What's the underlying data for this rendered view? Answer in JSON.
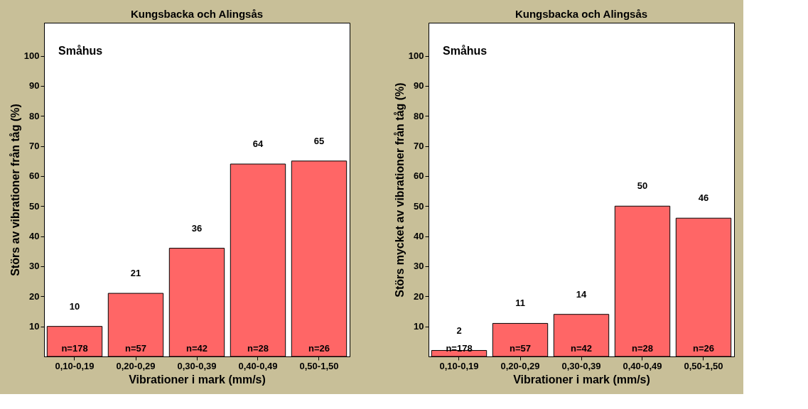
{
  "chart_data": [
    {
      "type": "bar",
      "title": "Kungsbacka och Alingsås",
      "xlabel": "Vibrationer i mark (mm/s)",
      "ylabel": "Störs av vibrationer från tåg (%)",
      "categories": [
        "0,10-0,19",
        "0,20-0,29",
        "0,30-0,39",
        "0,40-0,49",
        "0,50-1,50"
      ],
      "values": [
        10,
        21,
        36,
        64,
        65
      ],
      "color": "#ff6666",
      "data_labels": true,
      "ylim": [
        0,
        111
      ],
      "yticks": [
        10,
        20,
        30,
        40,
        50,
        60,
        70,
        80,
        90,
        100
      ],
      "annotations": [
        "Småhus",
        "n=178",
        "n=57",
        "n=42",
        "n=28",
        "n=26"
      ]
    },
    {
      "type": "bar",
      "title": "Kungsbacka och Alingsås",
      "xlabel": "Vibrationer i mark (mm/s)",
      "ylabel": "Störs mycket av vibrationer från tåg (%)",
      "categories": [
        "0,10-0,19",
        "0,20-0,29",
        "0,30-0,39",
        "0,40-0,49",
        "0,50-1,50"
      ],
      "values": [
        2,
        11,
        14,
        50,
        46
      ],
      "color": "#ff6666",
      "data_labels": true,
      "ylim": [
        0,
        111
      ],
      "yticks": [
        10,
        20,
        30,
        40,
        50,
        60,
        70,
        80,
        90,
        100
      ],
      "annotations": [
        "Småhus",
        "n=178",
        "n=57",
        "n=42",
        "n=28",
        "n=26"
      ]
    }
  ]
}
